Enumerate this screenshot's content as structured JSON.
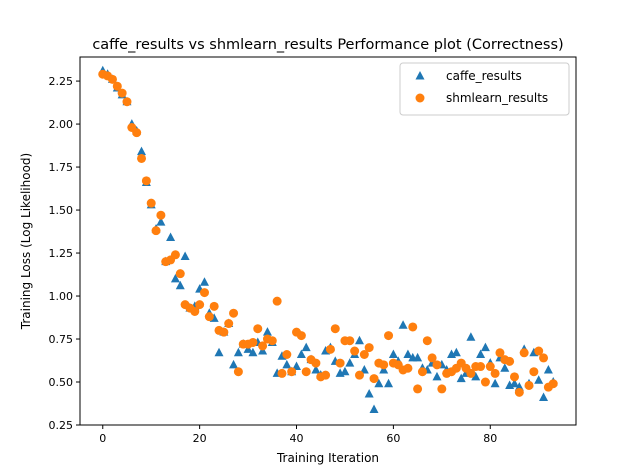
{
  "chart_data": {
    "type": "scatter",
    "title": "caffe_results vs shmlearn_results Performance plot (Correctness)",
    "xlabel": "Training Iteration",
    "ylabel": "Training Loss (Log Likelihood)",
    "xlim": [
      -4.7,
      97.7
    ],
    "ylim": [
      0.25,
      2.39
    ],
    "x_ticks": [
      0,
      20,
      40,
      60,
      80
    ],
    "y_ticks": [
      0.25,
      0.5,
      0.75,
      1.0,
      1.25,
      1.5,
      1.75,
      2.0,
      2.25
    ],
    "x_tick_labels": [
      "0",
      "20",
      "40",
      "60",
      "80"
    ],
    "y_tick_labels": [
      "0.25",
      "0.50",
      "0.75",
      "1.00",
      "1.25",
      "1.50",
      "1.75",
      "2.00",
      "2.25"
    ],
    "grid": false,
    "legend": "top-right",
    "series": [
      {
        "name": "caffe_results",
        "marker": "triangle",
        "color": "#1f77b4",
        "x": [
          0,
          1,
          2,
          3,
          4,
          5,
          6,
          7,
          8,
          9,
          10,
          11,
          12,
          13,
          14,
          15,
          16,
          17,
          18,
          19,
          20,
          21,
          22,
          23,
          24,
          25,
          26,
          27,
          28,
          29,
          30,
          31,
          32,
          33,
          34,
          35,
          36,
          37,
          38,
          39,
          40,
          41,
          42,
          43,
          44,
          45,
          46,
          47,
          48,
          49,
          50,
          51,
          52,
          53,
          54,
          55,
          56,
          57,
          58,
          59,
          60,
          61,
          62,
          63,
          64,
          65,
          66,
          67,
          68,
          69,
          70,
          71,
          72,
          73,
          74,
          75,
          76,
          77,
          78,
          79,
          80,
          81,
          82,
          83,
          84,
          85,
          86,
          87,
          88,
          89,
          90,
          91,
          92,
          93
        ],
        "y": [
          2.31,
          2.29,
          2.26,
          2.21,
          2.17,
          2.13,
          2.0,
          1.96,
          1.84,
          1.66,
          1.53,
          1.39,
          1.43,
          1.2,
          1.34,
          1.1,
          1.06,
          1.23,
          0.93,
          0.94,
          1.04,
          1.08,
          0.9,
          0.87,
          0.67,
          0.79,
          0.84,
          0.6,
          0.67,
          0.72,
          0.69,
          0.67,
          0.73,
          0.68,
          0.79,
          0.73,
          0.55,
          0.65,
          0.6,
          0.56,
          0.59,
          0.66,
          0.7,
          0.63,
          0.57,
          0.54,
          0.68,
          0.7,
          0.62,
          0.55,
          0.56,
          0.61,
          0.66,
          0.74,
          0.57,
          0.43,
          0.34,
          0.49,
          0.57,
          0.49,
          0.66,
          0.62,
          0.83,
          0.66,
          0.64,
          0.64,
          0.58,
          0.57,
          0.61,
          0.53,
          0.6,
          0.57,
          0.66,
          0.67,
          0.52,
          0.55,
          0.76,
          0.53,
          0.66,
          0.7,
          0.61,
          0.49,
          0.64,
          0.58,
          0.48,
          0.49,
          0.47,
          0.69,
          0.49,
          0.67,
          0.51,
          0.41,
          0.57,
          0.5
        ]
      },
      {
        "name": "shmlearn_results",
        "marker": "circle",
        "color": "#ff7f0e",
        "x": [
          0,
          1,
          2,
          3,
          4,
          5,
          6,
          7,
          8,
          9,
          10,
          11,
          12,
          13,
          14,
          15,
          16,
          17,
          18,
          19,
          20,
          21,
          22,
          23,
          24,
          25,
          26,
          27,
          28,
          29,
          30,
          31,
          32,
          33,
          34,
          35,
          36,
          37,
          38,
          39,
          40,
          41,
          42,
          43,
          44,
          45,
          46,
          47,
          48,
          49,
          50,
          51,
          52,
          53,
          54,
          55,
          56,
          57,
          58,
          59,
          60,
          61,
          62,
          63,
          64,
          65,
          66,
          67,
          68,
          69,
          70,
          71,
          72,
          73,
          74,
          75,
          76,
          77,
          78,
          79,
          80,
          81,
          82,
          83,
          84,
          85,
          86,
          87,
          88,
          89,
          90,
          91,
          92,
          93
        ],
        "y": [
          2.29,
          2.28,
          2.26,
          2.22,
          2.18,
          2.13,
          1.98,
          1.95,
          1.8,
          1.67,
          1.54,
          1.38,
          1.47,
          1.2,
          1.21,
          1.24,
          1.13,
          0.95,
          0.93,
          0.91,
          0.95,
          1.02,
          0.88,
          0.94,
          0.8,
          0.79,
          0.84,
          0.9,
          0.56,
          0.72,
          0.72,
          0.73,
          0.81,
          0.71,
          0.75,
          0.74,
          0.97,
          0.55,
          0.66,
          0.56,
          0.79,
          0.77,
          0.56,
          0.63,
          0.61,
          0.53,
          0.54,
          0.69,
          0.81,
          0.61,
          0.74,
          0.74,
          0.68,
          0.54,
          0.66,
          0.7,
          0.52,
          0.61,
          0.6,
          0.77,
          0.61,
          0.6,
          0.57,
          0.58,
          0.82,
          0.46,
          0.56,
          0.74,
          0.64,
          0.6,
          0.46,
          0.55,
          0.56,
          0.58,
          0.61,
          0.58,
          0.55,
          0.59,
          0.59,
          0.5,
          0.59,
          0.55,
          0.67,
          0.63,
          0.62,
          0.53,
          0.44,
          0.67,
          0.48,
          0.56,
          0.68,
          0.64,
          0.47,
          0.49
        ]
      }
    ]
  }
}
